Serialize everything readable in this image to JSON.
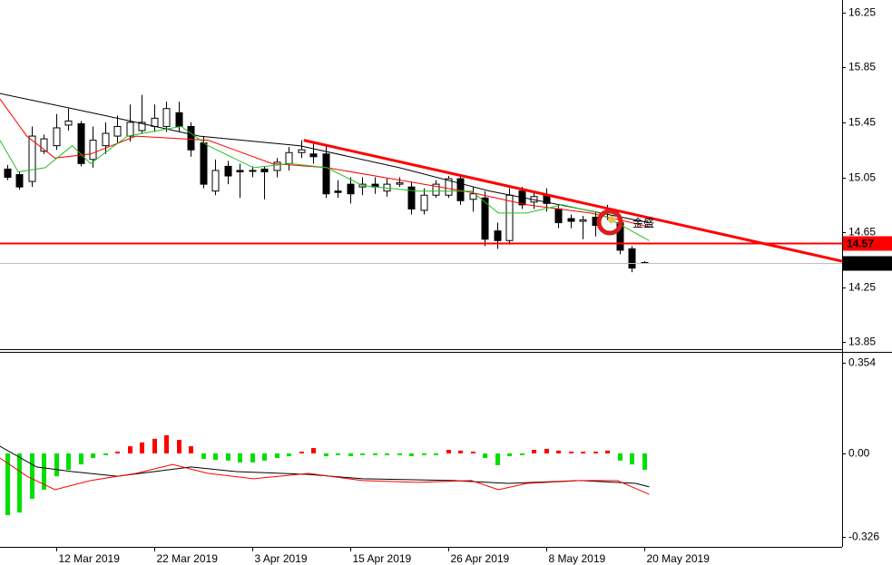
{
  "chart_data": [
    {
      "type": "candlestick",
      "categories": [
        null,
        null,
        null,
        null,
        "12 Mar 2019",
        null,
        null,
        null,
        null,
        null,
        null,
        null,
        "22 Mar 2019",
        null,
        null,
        null,
        null,
        null,
        null,
        null,
        "3 Apr 2019",
        null,
        null,
        null,
        null,
        null,
        null,
        null,
        "15 Apr 2019",
        null,
        null,
        null,
        null,
        null,
        null,
        null,
        "26 Apr 2019",
        null,
        null,
        null,
        null,
        null,
        null,
        null,
        "8 May 2019",
        null,
        null,
        null,
        null,
        null,
        null,
        null,
        "20 May 2019"
      ],
      "open": [
        15.11,
        15.07,
        15.02,
        15.24,
        15.28,
        15.43,
        15.44,
        15.18,
        15.28,
        15.35,
        15.35,
        15.39,
        15.42,
        15.42,
        15.52,
        15.42,
        15.3,
        14.95,
        15.13,
        15.1,
        15.1,
        15.11,
        15.1,
        15.15,
        15.23,
        15.22,
        15.22,
        14.95,
        15.0,
        14.98,
        15.0,
        14.95,
        15.0,
        14.98,
        14.81,
        14.92,
        14.92,
        15.04,
        14.89,
        14.9,
        14.66,
        14.59,
        14.95,
        14.87,
        14.92,
        14.82,
        14.75,
        14.73,
        14.76,
        14.79,
        14.72,
        14.53,
        14.43
      ],
      "high": [
        15.14,
        15.09,
        15.42,
        15.36,
        15.51,
        15.55,
        15.46,
        15.42,
        15.45,
        15.5,
        15.58,
        15.65,
        15.58,
        15.6,
        15.6,
        15.45,
        15.35,
        15.18,
        15.17,
        15.15,
        15.13,
        15.13,
        15.19,
        15.27,
        15.32,
        15.3,
        15.28,
        15.03,
        15.05,
        15.05,
        15.05,
        15.04,
        15.05,
        15.02,
        14.97,
        15.03,
        15.06,
        15.07,
        14.98,
        14.95,
        14.72,
        14.97,
        14.98,
        14.95,
        14.97,
        14.85,
        14.78,
        14.77,
        14.8,
        14.85,
        14.76,
        14.55,
        14.44
      ],
      "low": [
        15.03,
        14.96,
        14.98,
        15.22,
        15.25,
        15.39,
        15.13,
        15.12,
        15.22,
        15.3,
        15.31,
        15.37,
        15.38,
        15.38,
        15.38,
        15.2,
        14.97,
        14.92,
        15.0,
        14.9,
        15.05,
        14.89,
        15.05,
        15.1,
        15.19,
        15.15,
        14.9,
        14.9,
        14.86,
        14.92,
        14.93,
        14.91,
        14.98,
        14.78,
        14.78,
        14.9,
        14.9,
        14.85,
        14.8,
        14.55,
        14.53,
        14.56,
        14.82,
        14.82,
        14.8,
        14.68,
        14.68,
        14.6,
        14.62,
        14.74,
        14.49,
        14.36,
        14.42
      ],
      "close": [
        15.05,
        14.98,
        15.35,
        15.33,
        15.41,
        15.46,
        15.15,
        15.32,
        15.37,
        15.42,
        15.45,
        15.45,
        15.48,
        15.55,
        15.42,
        15.25,
        15.0,
        15.1,
        15.06,
        15.09,
        15.1,
        15.09,
        15.16,
        15.23,
        15.25,
        15.2,
        14.93,
        14.94,
        14.93,
        15.0,
        14.98,
        15.0,
        15.01,
        14.82,
        14.92,
        15.0,
        15.04,
        14.88,
        14.93,
        14.6,
        14.59,
        14.92,
        14.85,
        14.91,
        14.86,
        14.72,
        14.73,
        14.74,
        14.7,
        14.8,
        14.52,
        14.39,
        14.43
      ],
      "lines": [
        {
          "color": "#000000",
          "x": [
            -0.6,
            5.3,
            9,
            15.7,
            23.9,
            32,
            39.4,
            46.8,
            52.4
          ],
          "values": [
            15.66,
            15.55,
            15.48,
            15.35,
            15.28,
            15.12,
            14.95,
            14.82,
            14.72
          ]
        },
        {
          "color": "#ff0000",
          "x": [
            -0.6,
            1.6,
            3.9,
            6.8,
            10.5,
            16.4,
            21.6,
            26.1,
            32.7,
            37.9,
            42.4,
            47.6,
            52.4
          ],
          "values": [
            15.62,
            15.35,
            15.19,
            15.22,
            15.35,
            15.32,
            15.15,
            15.12,
            15.02,
            14.94,
            14.85,
            14.79,
            14.69
          ]
        },
        {
          "color": "#22c022",
          "x": [
            -0.6,
            0.9,
            3.1,
            5.3,
            6.8,
            9.8,
            14.2,
            16.4,
            20.1,
            23.1,
            26.1,
            29,
            33.5,
            37.9,
            40.1,
            42.4,
            45.3,
            48.3,
            52.4
          ],
          "values": [
            15.32,
            15.09,
            15.12,
            15.28,
            15.15,
            15.35,
            15.42,
            15.28,
            15.12,
            15.15,
            15.12,
            14.99,
            14.95,
            14.95,
            14.79,
            14.79,
            14.85,
            14.79,
            14.59
          ]
        }
      ],
      "trendline": {
        "color": "#ff0000",
        "x": [
          24.2,
          68.15
        ],
        "values": [
          15.32,
          14.44
        ]
      },
      "hlines": [
        {
          "value": 14.57,
          "color": "#ff0000",
          "label_bg": "#ff0000"
        },
        {
          "value": 14.43,
          "color": "#c0c0c0",
          "label_bg": "#000000"
        }
      ],
      "watermark": "金盛",
      "xlim": [
        -0.59,
        68.15
      ],
      "ylim": [
        13.8,
        16.34
      ],
      "yticks": [
        16.25,
        15.85,
        15.45,
        15.05,
        14.65,
        14.25,
        13.85
      ]
    },
    {
      "type": "macd",
      "values": [
        -0.241,
        -0.231,
        -0.177,
        -0.142,
        -0.089,
        -0.064,
        -0.043,
        -0.018,
        -0.007,
        0.007,
        0.028,
        0.043,
        0.057,
        0.071,
        0.053,
        0.028,
        -0.021,
        -0.025,
        -0.028,
        -0.035,
        -0.035,
        -0.028,
        -0.018,
        -0.011,
        0.007,
        0.021,
        -0.011,
        -0.007,
        -0.011,
        -0.007,
        -0.007,
        -0.007,
        -0.007,
        -0.011,
        -0.007,
        -0.007,
        0.014,
        0.011,
        0.007,
        -0.018,
        -0.046,
        -0.011,
        -0.007,
        0.014,
        0.018,
        0.011,
        0.007,
        0.007,
        0.007,
        0.011,
        -0.028,
        -0.043,
        -0.064
      ],
      "pos_color": "#ff0000",
      "neg_color": "#00e000",
      "lines": [
        {
          "color": "#000000",
          "x": [
            -0.6,
            2.4,
            5.3,
            9,
            15,
            18.7,
            24.6,
            29,
            36.4,
            40.9,
            46.8,
            51.3,
            52.4
          ],
          "values": [
            0.028,
            -0.053,
            -0.071,
            -0.089,
            -0.053,
            -0.071,
            -0.082,
            -0.099,
            -0.106,
            -0.117,
            -0.106,
            -0.117,
            -0.131
          ]
        },
        {
          "color": "#ff0000",
          "x": [
            -0.6,
            1.6,
            3.9,
            6.8,
            10.5,
            13.5,
            16.4,
            20.1,
            24.6,
            29,
            33.5,
            37.9,
            40.1,
            42.4,
            46.8,
            49.8,
            52.4
          ],
          "values": [
            -0.018,
            -0.089,
            -0.142,
            -0.106,
            -0.078,
            -0.043,
            -0.078,
            -0.099,
            -0.078,
            -0.106,
            -0.113,
            -0.106,
            -0.142,
            -0.117,
            -0.106,
            -0.106,
            -0.16
          ]
        }
      ],
      "xlim": [
        -0.59,
        68.15
      ],
      "ylim": [
        -0.365,
        0.393
      ],
      "yticks": [
        0.354,
        {
          "value": 0,
          "label": "0.00"
        },
        -0.326
      ]
    }
  ]
}
